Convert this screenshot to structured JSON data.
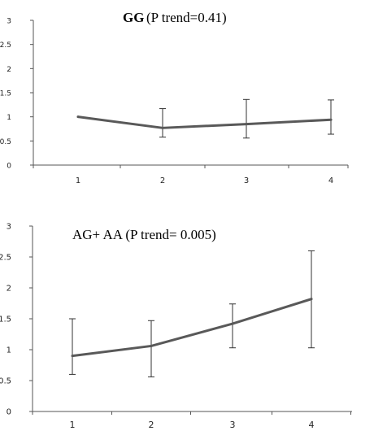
{
  "chart_data": [
    {
      "type": "line",
      "title_bold": "GG",
      "title_rest": " (P trend=0.41)",
      "xlabel": "",
      "ylabel": "",
      "x": [
        "1",
        "2",
        "3",
        "4"
      ],
      "ylim": [
        0,
        3
      ],
      "yticks": [
        "0",
        "0.5",
        "1",
        "1.5",
        "2",
        "2.5",
        "3"
      ],
      "series": [
        {
          "values": [
            1.0,
            0.77,
            0.85,
            0.94
          ],
          "err_low": [
            1.0,
            0.58,
            0.56,
            0.64
          ],
          "err_high": [
            1.0,
            1.17,
            1.36,
            1.35
          ]
        }
      ],
      "grid": false,
      "colors": {
        "line": "#595959",
        "axis": "#555555"
      }
    },
    {
      "type": "line",
      "title": "AG+ AA (P trend= 0.005)",
      "xlabel": "",
      "ylabel": "",
      "x": [
        "1",
        "2",
        "3",
        "4"
      ],
      "ylim": [
        0,
        3
      ],
      "yticks": [
        "0",
        "0.5",
        "1",
        "1.5",
        "2",
        "2.5",
        "3"
      ],
      "series": [
        {
          "values": [
            0.9,
            1.06,
            1.42,
            1.82
          ],
          "err_low": [
            0.6,
            0.56,
            1.03,
            1.03
          ],
          "err_high": [
            1.5,
            1.47,
            1.74,
            2.6
          ]
        }
      ],
      "grid": false,
      "colors": {
        "line": "#595959",
        "axis": "#555555"
      }
    }
  ]
}
